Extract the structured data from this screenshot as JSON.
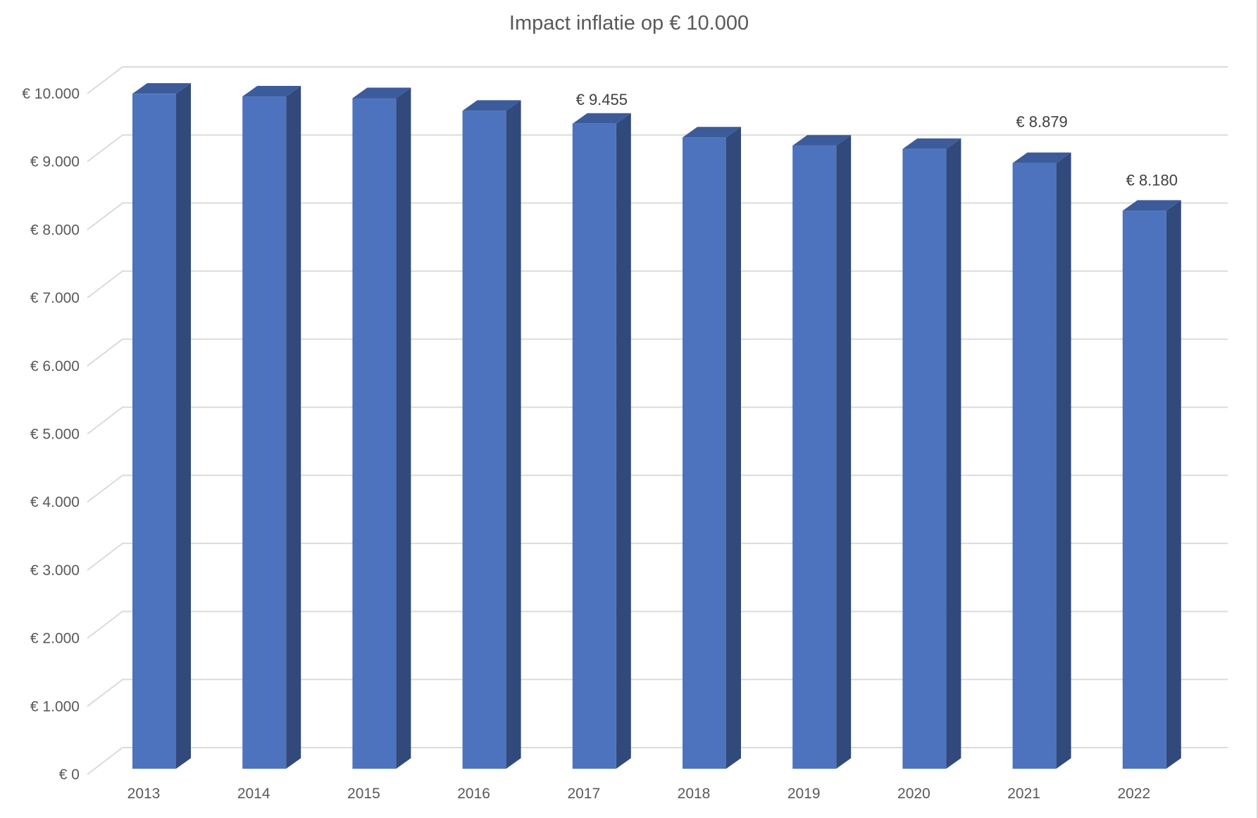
{
  "title": "Impact inflatie op € 10.000",
  "chart_data": {
    "type": "bar",
    "style": "3d-column",
    "title": "Impact inflatie op € 10.000",
    "categories": [
      "2013",
      "2014",
      "2015",
      "2016",
      "2017",
      "2018",
      "2019",
      "2020",
      "2021",
      "2022"
    ],
    "values": [
      9895,
      9855,
      9830,
      9645,
      9455,
      9255,
      9135,
      9085,
      8879,
      8180
    ],
    "data_labels": [
      null,
      null,
      null,
      null,
      "€ 9.455",
      null,
      null,
      null,
      "€ 8.879",
      "€ 8.180"
    ],
    "data_label_gaps": [
      0,
      0,
      0,
      0,
      20,
      0,
      0,
      0,
      44,
      29
    ],
    "y_ticks": [
      "€ 0",
      "€ 1.000",
      "€ 2.000",
      "€ 3.000",
      "€ 4.000",
      "€ 5.000",
      "€ 6.000",
      "€ 7.000",
      "€ 8.000",
      "€ 9.000",
      "€ 10.000"
    ],
    "ylim": [
      0,
      10000
    ],
    "y_tick_step": 1000,
    "xlabel": "",
    "ylabel": "",
    "legend": "none",
    "grid": true,
    "currency_prefix": "€",
    "colors": {
      "bar_front": "#4D73BE",
      "bar_top": "#3C5B9A",
      "bar_side": "#32497C",
      "gridline": "#DBDBDB",
      "axis_text": "#595959",
      "data_label_text": "#404040",
      "title_text": "#595959",
      "background": "#FFFFFF",
      "right_border": "#D9D9D9"
    }
  }
}
